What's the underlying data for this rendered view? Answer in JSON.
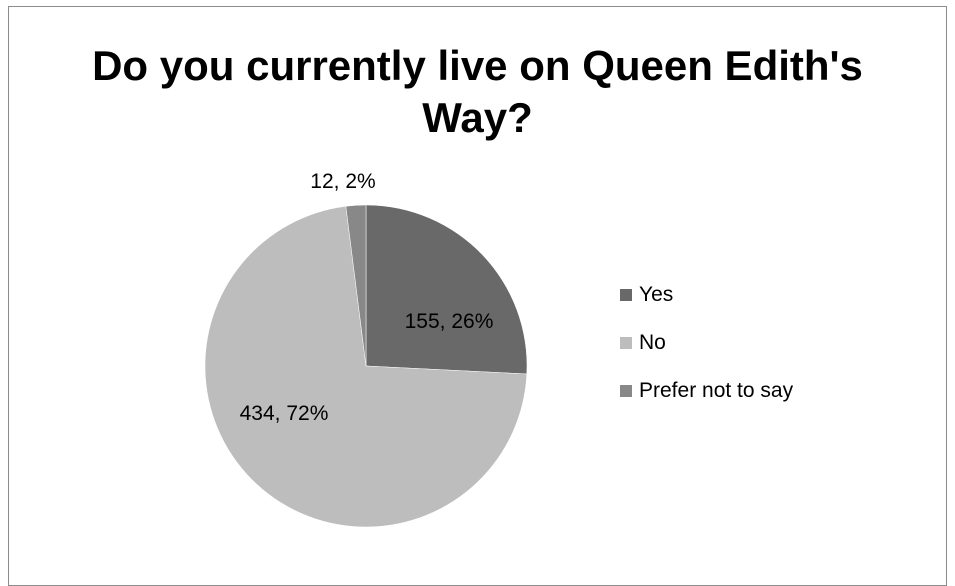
{
  "chart_data": {
    "type": "pie",
    "title": "Do you currently live on Queen Edith's Way?",
    "categories": [
      "Yes",
      "No",
      "Prefer not to say"
    ],
    "values": [
      155,
      434,
      12
    ],
    "percentages": [
      "26%",
      "72%",
      "2%"
    ],
    "data_labels": [
      "155, 26%",
      "434, 72%",
      "12, 2%"
    ],
    "colors": [
      "#696969",
      "#bdbdbd",
      "#888888"
    ],
    "legend_position": "right"
  }
}
